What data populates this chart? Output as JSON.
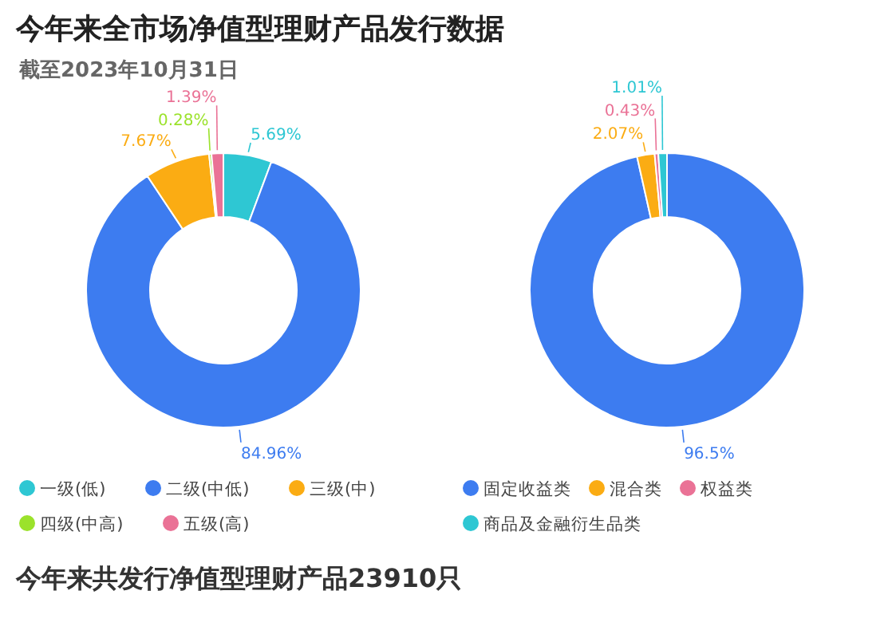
{
  "chart_data": [
    {
      "type": "donut",
      "title": "今年来全市场净值型理财产品发行数据",
      "subtitle": "截至2023年10月31日",
      "categories": [
        "一级(低)",
        "二级(中低)",
        "三级(中)",
        "四级(中高)",
        "五级(高)"
      ],
      "values": [
        5.69,
        84.96,
        7.67,
        0.28,
        1.39
      ],
      "colors": [
        "#2ec7d3",
        "#3d7cf0",
        "#fbac13",
        "#9be22b",
        "#ea7296"
      ],
      "value_labels": [
        "5.69%",
        "84.96%",
        "7.67%",
        "0.28%",
        "1.39%"
      ],
      "legend": "bottom"
    },
    {
      "type": "donut",
      "categories": [
        "固定收益类",
        "混合类",
        "权益类",
        "商品及金融衍生品类"
      ],
      "values": [
        96.5,
        2.07,
        0.43,
        1.01
      ],
      "colors": [
        "#3d7cf0",
        "#fbac13",
        "#ea7296",
        "#2ec7d3"
      ],
      "value_labels": [
        "96.5%",
        "2.07%",
        "0.43%",
        "1.01%"
      ],
      "legend": "bottom",
      "annotations": [
        "今年来共发行净值型理财产品23910只"
      ]
    }
  ]
}
